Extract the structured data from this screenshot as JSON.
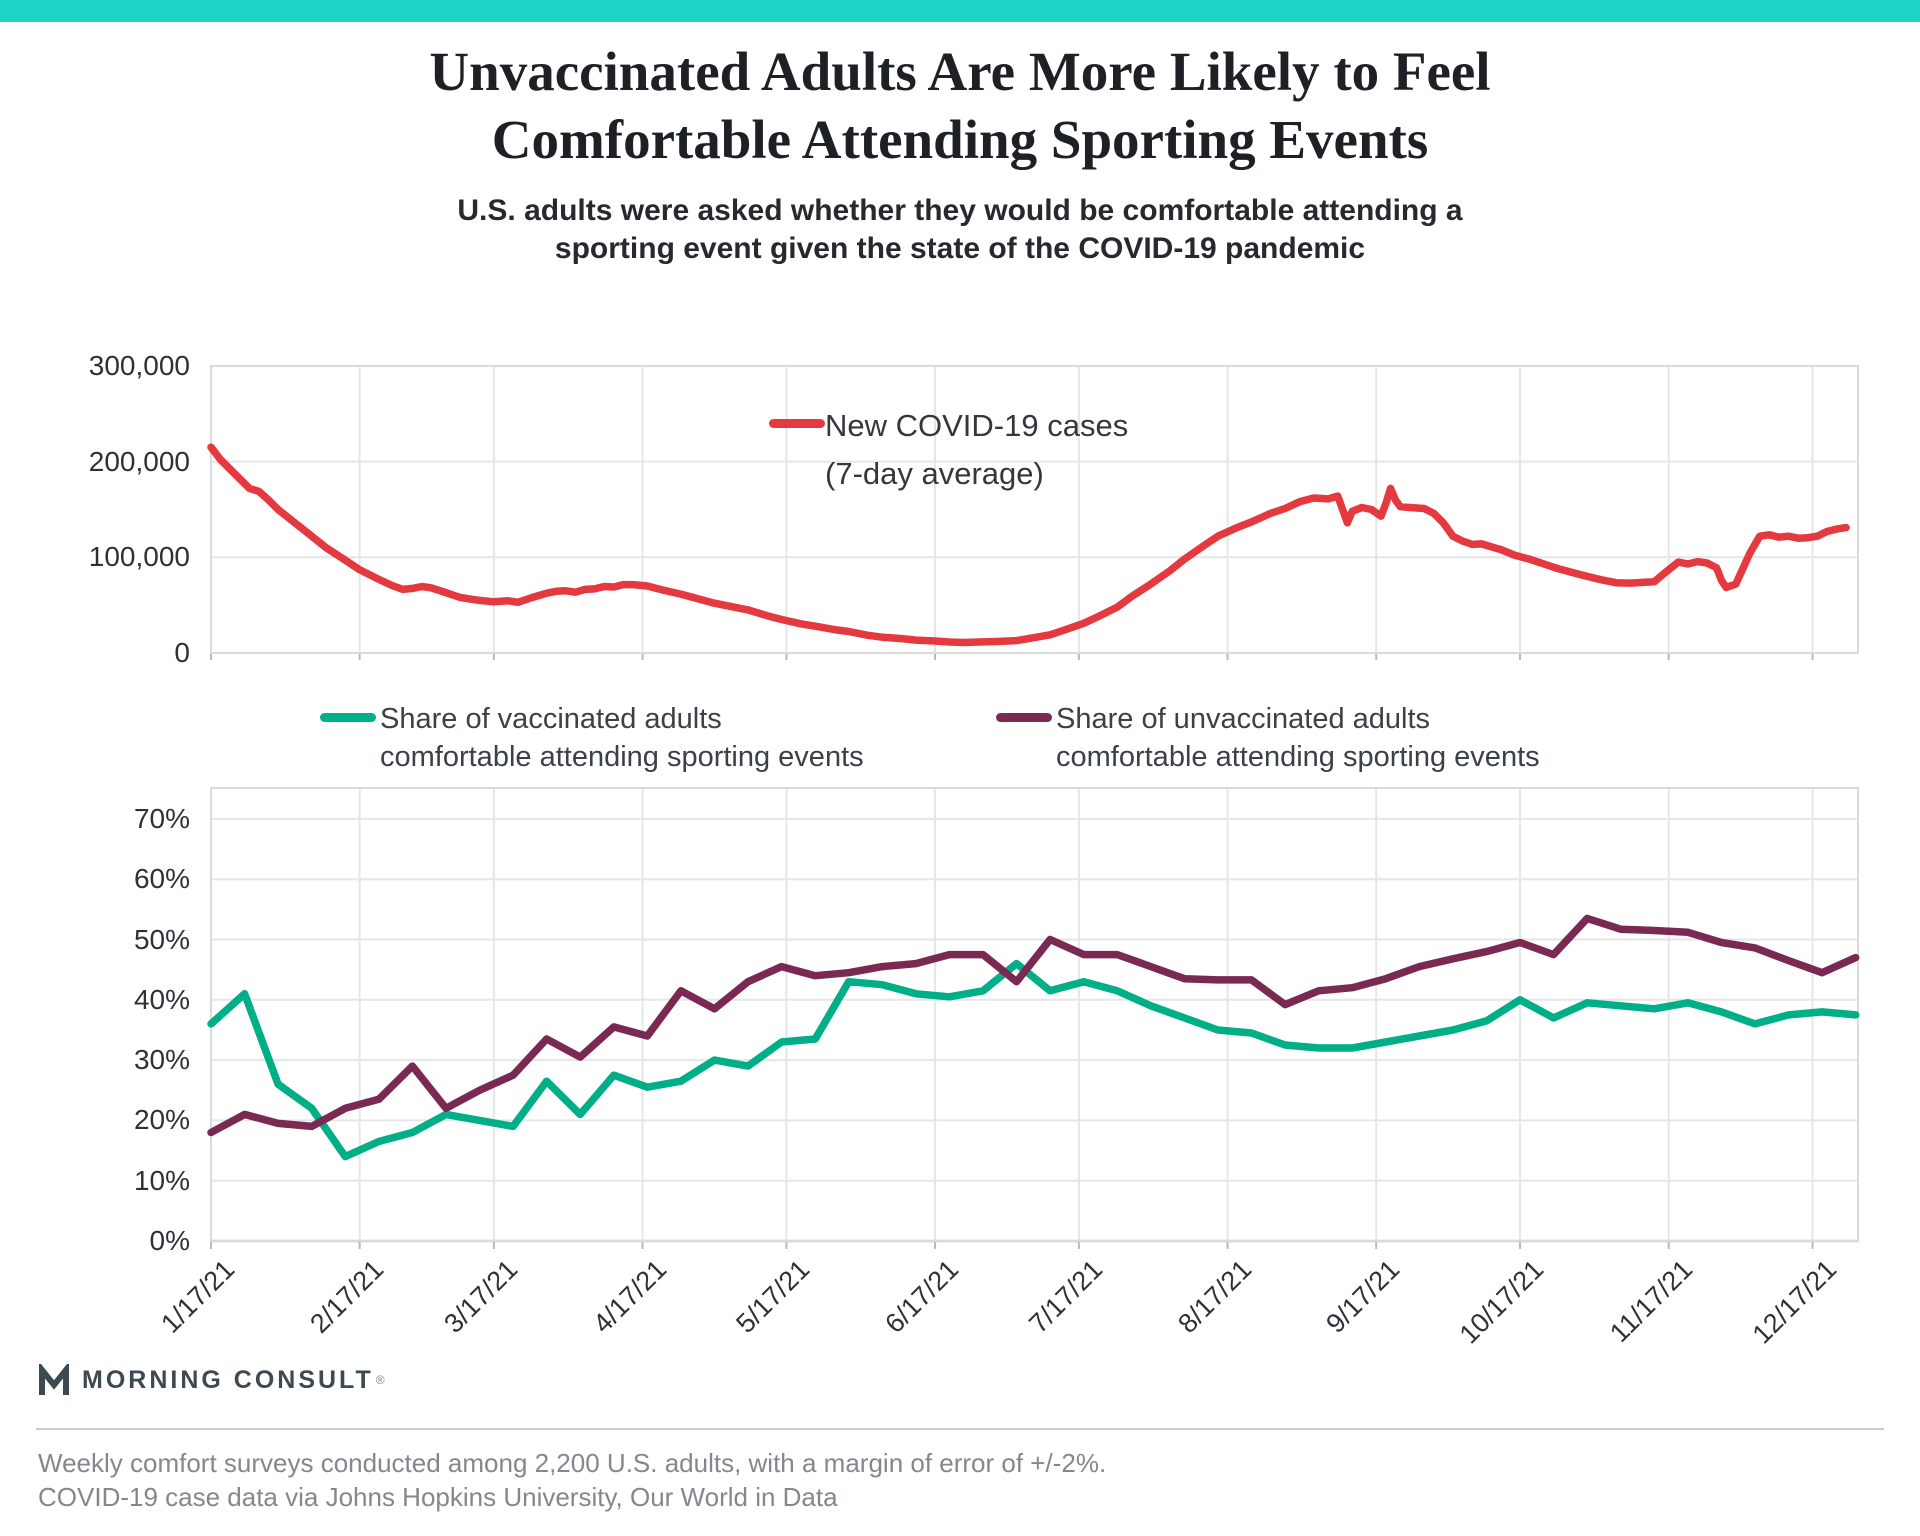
{
  "page": {
    "top_bar_color": "#1ed2c6"
  },
  "title": {
    "line1": "Unvaccinated Adults Are More Likely to Feel",
    "line2": "Comfortable Attending Sporting Events"
  },
  "subtitle": {
    "line1": "U.S. adults were asked whether they would be comfortable attending a",
    "line2": "sporting event given the state of the COVID-19 pandemic"
  },
  "logo": {
    "text": "MORNING CONSULT",
    "registered": "®"
  },
  "footer": {
    "line1": "Weekly comfort surveys conducted among 2,200 U.S. adults, with a margin of error of +/-2%.",
    "line2": "COVID-19 case data via Johns Hopkins University, Our World in Data"
  },
  "chart_data": {
    "type": "line",
    "x": {
      "start_date": "1/17/21",
      "end_date": "12/26/21",
      "tick_labels": [
        "1/17/21",
        "2/17/21",
        "3/17/21",
        "4/17/21",
        "5/17/21",
        "6/17/21",
        "7/17/21",
        "8/17/21",
        "9/17/21",
        "10/17/21",
        "11/17/21",
        "12/17/21"
      ],
      "tick_day_offsets": [
        0,
        31,
        59,
        90,
        120,
        151,
        181,
        212,
        243,
        273,
        304,
        334
      ],
      "grid": "on"
    },
    "charts": [
      {
        "id": "covid_cases",
        "legend": [
          "New COVID-19 cases",
          "(7-day average)"
        ],
        "ylim": [
          0,
          300000
        ],
        "y_tick_labels": [
          "0",
          "100,000",
          "200,000",
          "300,000"
        ],
        "y_tick_values_thousands": [
          0,
          100,
          200,
          300
        ],
        "series": [
          {
            "name": "New COVID-19 cases (7-day average)",
            "color": "#e4393f",
            "unit": "cases, thousands",
            "points_day_value": [
              [
                0,
                215
              ],
              [
                2,
                202
              ],
              [
                4,
                192
              ],
              [
                6,
                182
              ],
              [
                8,
                172
              ],
              [
                10,
                169
              ],
              [
                12,
                160
              ],
              [
                14,
                150
              ],
              [
                17,
                138
              ],
              [
                21,
                122
              ],
              [
                24,
                110
              ],
              [
                28,
                97
              ],
              [
                31,
                87
              ],
              [
                35,
                77
              ],
              [
                38,
                70
              ],
              [
                40,
                66.5
              ],
              [
                42,
                67.5
              ],
              [
                44,
                69.5
              ],
              [
                46,
                68
              ],
              [
                49,
                63
              ],
              [
                52,
                58
              ],
              [
                56,
                55
              ],
              [
                59,
                53.5
              ],
              [
                62,
                54.5
              ],
              [
                64,
                53
              ],
              [
                67,
                58
              ],
              [
                70,
                62.5
              ],
              [
                72,
                64.5
              ],
              [
                74,
                65
              ],
              [
                76,
                63.5
              ],
              [
                78,
                66.5
              ],
              [
                80,
                67
              ],
              [
                82,
                69.5
              ],
              [
                84,
                69
              ],
              [
                86,
                71.5
              ],
              [
                88,
                71.5
              ],
              [
                91,
                70
              ],
              [
                94,
                66
              ],
              [
                98,
                61.5
              ],
              [
                102,
                56
              ],
              [
                105,
                52
              ],
              [
                109,
                48
              ],
              [
                112,
                45
              ],
              [
                116,
                39
              ],
              [
                119,
                35
              ],
              [
                123,
                30.5
              ],
              [
                126,
                28
              ],
              [
                130,
                24.5
              ],
              [
                133,
                22.5
              ],
              [
                137,
                18.5
              ],
              [
                140,
                16.5
              ],
              [
                144,
                15
              ],
              [
                147,
                13.5
              ],
              [
                151,
                12.5
              ],
              [
                154,
                11.5
              ],
              [
                157,
                11
              ],
              [
                160,
                11.5
              ],
              [
                164,
                12
              ],
              [
                168,
                13
              ],
              [
                171,
                15.5
              ],
              [
                175,
                19
              ],
              [
                178,
                24
              ],
              [
                182,
                31
              ],
              [
                185,
                38
              ],
              [
                189,
                48
              ],
              [
                192,
                59
              ],
              [
                196,
                72
              ],
              [
                200,
                86
              ],
              [
                203,
                98
              ],
              [
                207,
                112
              ],
              [
                210,
                122
              ],
              [
                214,
                131
              ],
              [
                217,
                137
              ],
              [
                221,
                146
              ],
              [
                224,
                151
              ],
              [
                227,
                158
              ],
              [
                230,
                162
              ],
              [
                233,
                161
              ],
              [
                235,
                164
              ],
              [
                236,
                150
              ],
              [
                237,
                136
              ],
              [
                238,
                148
              ],
              [
                240,
                152
              ],
              [
                242,
                150
              ],
              [
                244,
                143
              ],
              [
                245,
                156
              ],
              [
                246,
                172
              ],
              [
                247,
                160
              ],
              [
                248,
                153
              ],
              [
                250,
                152
              ],
              [
                253,
                151
              ],
              [
                255,
                146
              ],
              [
                257,
                136
              ],
              [
                259,
                122
              ],
              [
                261,
                117
              ],
              [
                263,
                113.5
              ],
              [
                265,
                114
              ],
              [
                267,
                111
              ],
              [
                269,
                108
              ],
              [
                272,
                102
              ],
              [
                275,
                98
              ],
              [
                278,
                93
              ],
              [
                281,
                88
              ],
              [
                284,
                84
              ],
              [
                287,
                80
              ],
              [
                290,
                76.5
              ],
              [
                293,
                73.5
              ],
              [
                296,
                73
              ],
              [
                299,
                74
              ],
              [
                301,
                74.5
              ],
              [
                303,
                83
              ],
              [
                305,
                91
              ],
              [
                306,
                95
              ],
              [
                308,
                93
              ],
              [
                310,
                95.5
              ],
              [
                312,
                94
              ],
              [
                314,
                89
              ],
              [
                315,
                76
              ],
              [
                316,
                68.5
              ],
              [
                318,
                72
              ],
              [
                319,
                83
              ],
              [
                321,
                105
              ],
              [
                323,
                122
              ],
              [
                325,
                123.5
              ],
              [
                327,
                121
              ],
              [
                329,
                122
              ],
              [
                331,
                120
              ],
              [
                333,
                120.5
              ],
              [
                335,
                122
              ],
              [
                337,
                127
              ],
              [
                339,
                129.5
              ],
              [
                341,
                131
              ]
            ]
          }
        ]
      },
      {
        "id": "comfort_share",
        "ylim": [
          0,
          70
        ],
        "y_tick_labels": [
          "0%",
          "10%",
          "20%",
          "30%",
          "40%",
          "50%",
          "60%",
          "70%"
        ],
        "weekly_step_days": 7,
        "series": [
          {
            "name": "Share of vaccinated adults comfortable attending sporting events",
            "legend": [
              "Share of vaccinated adults",
              "comfortable attending sporting events"
            ],
            "color": "#00ae87",
            "values_pct": [
              36,
              41,
              26,
              22,
              14,
              16.5,
              18,
              21,
              20,
              19,
              26.5,
              21,
              27.5,
              25.5,
              26.5,
              30,
              29,
              33,
              33.5,
              43,
              42.5,
              41,
              40.5,
              41.5,
              46,
              41.5,
              43,
              41.5,
              39,
              37,
              35,
              34.5,
              32.5,
              32,
              32,
              33,
              34,
              35,
              36.5,
              40,
              37,
              39.5,
              39,
              38.5,
              39.5,
              38,
              36,
              37.5,
              38,
              37.5
            ]
          },
          {
            "name": "Share of unvaccinated adults comfortable attending sporting events",
            "legend": [
              "Share of unvaccinated adults",
              "comfortable attending sporting events"
            ],
            "color": "#7a2a52",
            "values_pct": [
              18,
              21,
              19.5,
              19,
              22,
              23.5,
              29,
              22,
              25,
              27.5,
              33.5,
              30.5,
              35.5,
              34,
              41.5,
              38.5,
              43,
              45.5,
              44,
              44.5,
              45.5,
              46,
              47.5,
              47.5,
              43,
              50,
              47.5,
              47.5,
              45.5,
              43.5,
              43.3,
              43.3,
              39.2,
              41.5,
              42,
              43.5,
              45.5,
              46.8,
              48,
              49.5,
              47.5,
              53.5,
              51.7,
              51.5,
              51.2,
              49.5,
              48.6,
              46.5,
              44.5,
              47
            ]
          }
        ]
      }
    ]
  }
}
